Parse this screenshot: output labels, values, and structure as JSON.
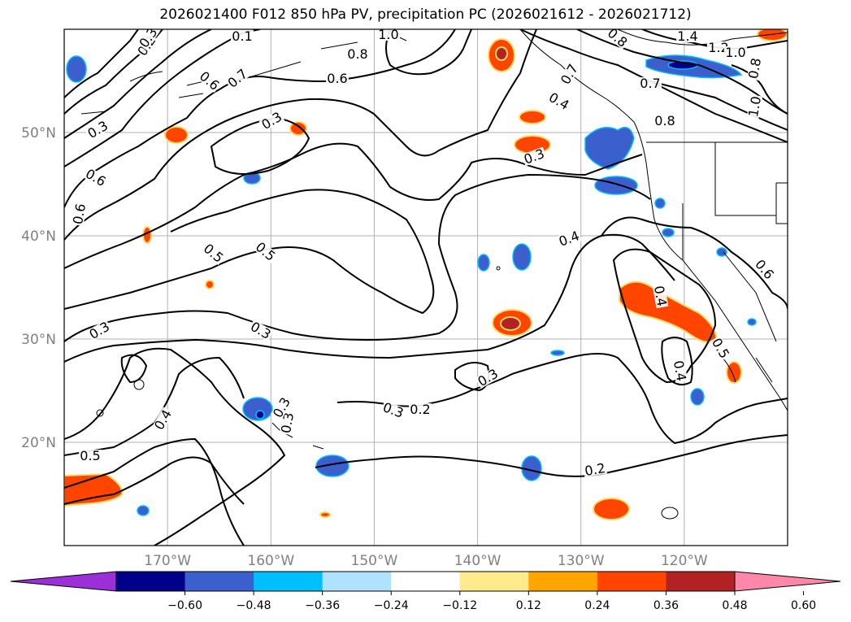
{
  "title": "2026021400 F012 850 hPa PV, precipitation PC (2026021612 - 2026021712)",
  "map": {
    "lon_range": [
      -180,
      -110
    ],
    "lat_range": [
      10,
      60
    ],
    "lat_ticks": [
      {
        "value": 50,
        "label": "50°N"
      },
      {
        "value": 40,
        "label": "40°N"
      },
      {
        "value": 30,
        "label": "30°N"
      },
      {
        "value": 20,
        "label": "20°N"
      }
    ],
    "lon_ticks": [
      {
        "value": -170,
        "label": "170°W"
      },
      {
        "value": -160,
        "label": "160°W"
      },
      {
        "value": -150,
        "label": "150°W"
      },
      {
        "value": -140,
        "label": "140°W"
      },
      {
        "value": -130,
        "label": "130°W"
      },
      {
        "value": -120,
        "label": "120°W"
      }
    ],
    "contour_labels": [
      "0.2",
      "0.1",
      "1.0",
      "0.8",
      "0.7",
      "0.8",
      "1.4",
      "1.2",
      "1.0",
      "0.8",
      "0.4",
      "0.6",
      "0.7",
      "0.8",
      "0.6",
      "0.7",
      "1.0",
      "0.3",
      "0.3",
      "0.3",
      "0.4",
      "0.5",
      "0.6",
      "0.6",
      "0.5",
      "0.4",
      "0.5",
      "0.3",
      "0.3",
      "0.4",
      "0.5",
      "0.3",
      "0.3",
      "0.2",
      "0.3",
      "0.3",
      "0.2",
      "0.4",
      "0.6",
      "0.3"
    ]
  },
  "colorbar": {
    "colors": [
      "#9b30d9",
      "#00008b",
      "#3b5fcd",
      "#00bfff",
      "#b0e2ff",
      "#ffffff",
      "#ffeb8c",
      "#ffa500",
      "#ff4500",
      "#b22222",
      "#ff88aa"
    ],
    "labels": [
      "−0.60",
      "−0.48",
      "−0.36",
      "−0.24",
      "−0.12",
      "0.12",
      "0.24",
      "0.36",
      "0.48",
      "0.60"
    ]
  }
}
